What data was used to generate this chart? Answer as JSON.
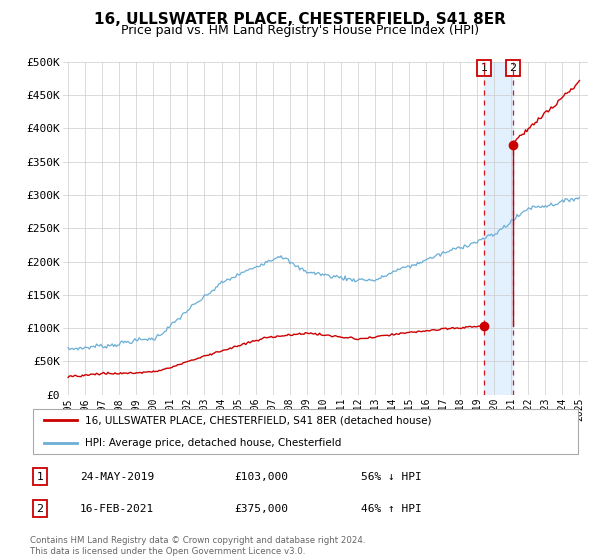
{
  "title": "16, ULLSWATER PLACE, CHESTERFIELD, S41 8ER",
  "subtitle": "Price paid vs. HM Land Registry's House Price Index (HPI)",
  "title_fontsize": 11,
  "subtitle_fontsize": 9,
  "ylim": [
    0,
    500000
  ],
  "yticks": [
    0,
    50000,
    100000,
    150000,
    200000,
    250000,
    300000,
    350000,
    400000,
    450000,
    500000
  ],
  "ytick_labels": [
    "£0",
    "£50K",
    "£100K",
    "£150K",
    "£200K",
    "£250K",
    "£300K",
    "£350K",
    "£400K",
    "£450K",
    "£500K"
  ],
  "xticks": [
    1995,
    1996,
    1997,
    1998,
    1999,
    2000,
    2001,
    2002,
    2003,
    2004,
    2005,
    2006,
    2007,
    2008,
    2009,
    2010,
    2011,
    2012,
    2013,
    2014,
    2015,
    2016,
    2017,
    2018,
    2019,
    2020,
    2021,
    2022,
    2023,
    2024,
    2025
  ],
  "hpi_color": "#6baed6",
  "price_color": "#cc0000",
  "shade_color": "#ddeeff",
  "vline1_x": 2019.4,
  "vline2_x": 2021.1,
  "marker1_x": 2019.4,
  "marker1_y": 103000,
  "marker2_x": 2021.1,
  "marker2_y": 375000,
  "sale1_date": "24-MAY-2019",
  "sale1_price": "£103,000",
  "sale1_hpi": "56% ↓ HPI",
  "sale2_date": "16-FEB-2021",
  "sale2_price": "£375,000",
  "sale2_hpi": "46% ↑ HPI",
  "legend_label_price": "16, ULLSWATER PLACE, CHESTERFIELD, S41 8ER (detached house)",
  "legend_label_hpi": "HPI: Average price, detached house, Chesterfield",
  "footnote": "Contains HM Land Registry data © Crown copyright and database right 2024.\nThis data is licensed under the Open Government Licence v3.0.",
  "background_color": "#ffffff",
  "grid_color": "#cccccc"
}
